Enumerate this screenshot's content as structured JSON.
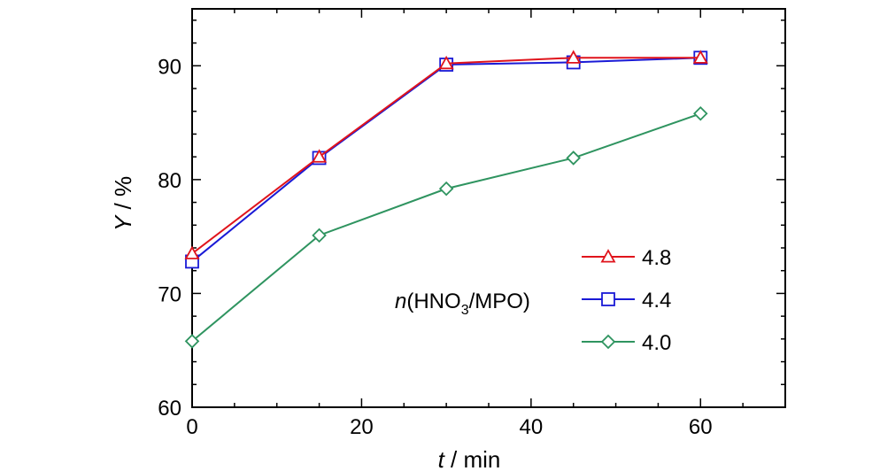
{
  "chart_data": {
    "type": "line",
    "xlabel_var": "t",
    "xlabel_unit": " / min",
    "ylabel_var": "Y",
    "ylabel_unit": " / %",
    "xlim": [
      0,
      70
    ],
    "ylim": [
      60,
      95
    ],
    "x_ticks": [
      0,
      20,
      40,
      60
    ],
    "y_ticks": [
      60,
      70,
      80,
      90
    ],
    "x_minor_step": 5,
    "y_minor_step": 2,
    "grid": false,
    "legend_position": "bottom-right",
    "annotation": {
      "var": "n",
      "pre": "(HNO",
      "sub": "3",
      "post": "/MPO)"
    },
    "x": [
      0,
      15,
      30,
      45,
      60
    ],
    "series": [
      {
        "name": "4.8",
        "values": [
          73.5,
          82.0,
          90.2,
          90.7,
          90.7
        ],
        "color": "#e0141c",
        "marker": "triangle"
      },
      {
        "name": "4.4",
        "values": [
          72.8,
          81.9,
          90.1,
          90.3,
          90.7
        ],
        "color": "#1a1ad6",
        "marker": "square"
      },
      {
        "name": "4.0",
        "values": [
          65.8,
          75.1,
          79.2,
          81.9,
          85.8
        ],
        "color": "#2f9460",
        "marker": "diamond"
      }
    ]
  }
}
